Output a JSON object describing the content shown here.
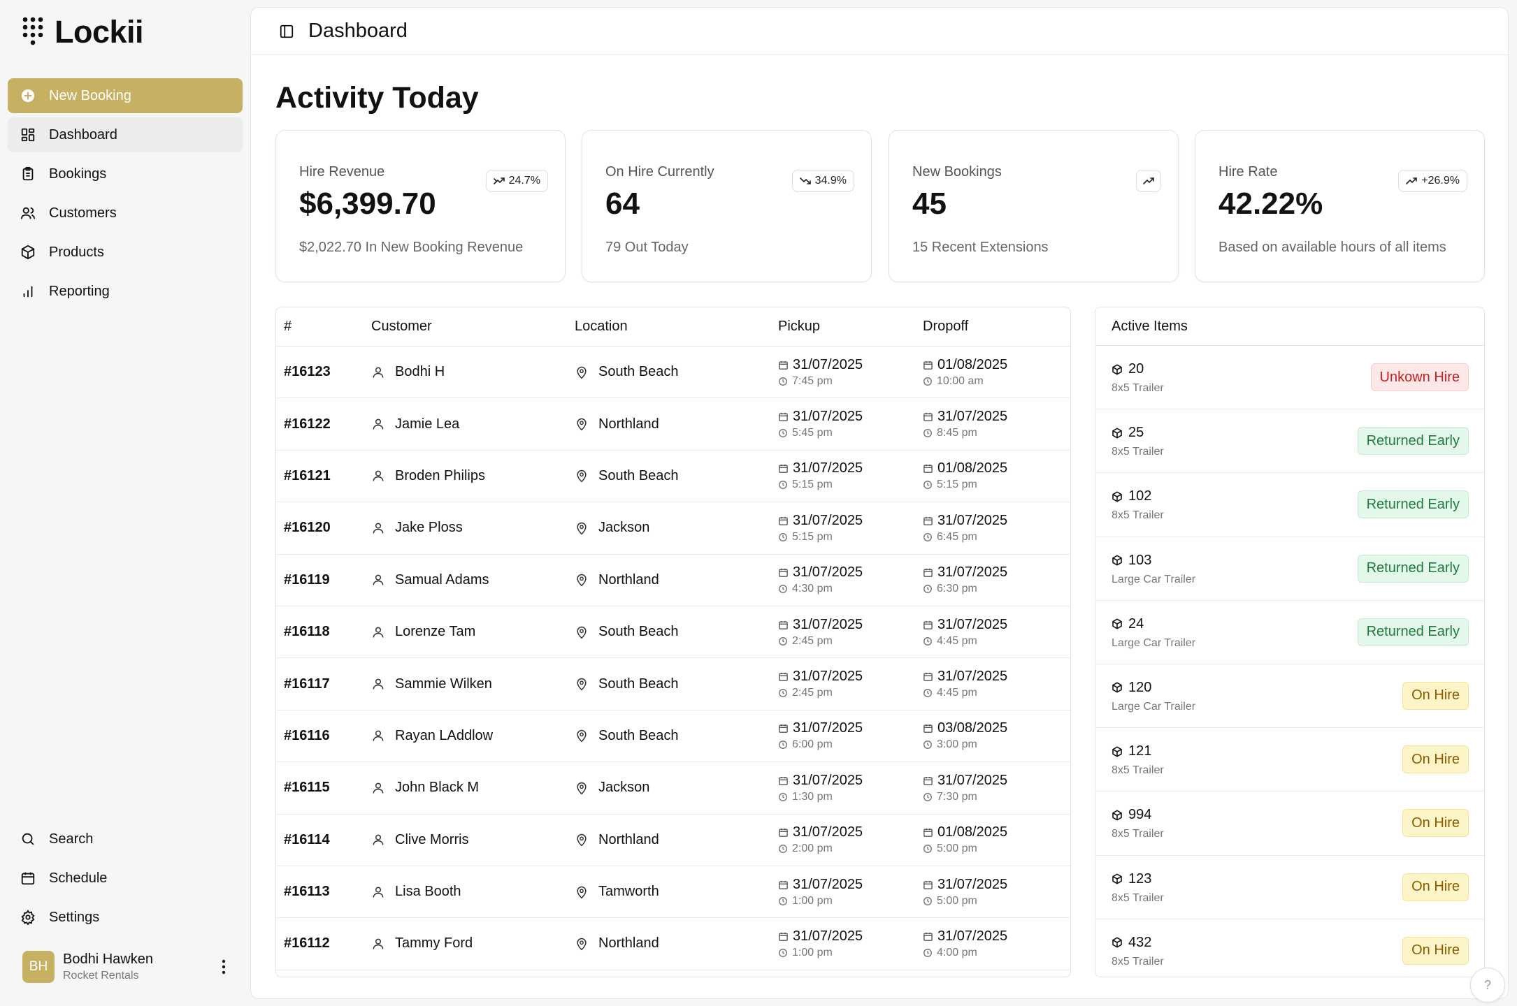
{
  "app": {
    "name": "Lockii"
  },
  "sidebar": {
    "nav": [
      {
        "label": "New Booking",
        "icon": "plus-circle-icon"
      },
      {
        "label": "Dashboard",
        "icon": "dashboard-icon"
      },
      {
        "label": "Bookings",
        "icon": "clipboard-icon"
      },
      {
        "label": "Customers",
        "icon": "users-icon"
      },
      {
        "label": "Products",
        "icon": "box-icon"
      },
      {
        "label": "Reporting",
        "icon": "bar-chart-icon"
      }
    ],
    "bottom": [
      {
        "label": "Search",
        "icon": "search-icon"
      },
      {
        "label": "Schedule",
        "icon": "calendar-icon"
      },
      {
        "label": "Settings",
        "icon": "gear-icon"
      }
    ],
    "user": {
      "initials": "BH",
      "name": "Bodhi Hawken",
      "org": "Rocket Rentals"
    }
  },
  "header": {
    "title": "Dashboard"
  },
  "page": {
    "title": "Activity Today"
  },
  "stats": [
    {
      "label": "Hire Revenue",
      "value": "$6,399.70",
      "sub": "$2,022.70 In New Booking Revenue",
      "badge": "24.7%",
      "trend": "mixed"
    },
    {
      "label": "On Hire Currently",
      "value": "64",
      "sub": "79 Out Today",
      "badge": "34.9%",
      "trend": "down"
    },
    {
      "label": "New Bookings",
      "value": "45",
      "sub": "15 Recent Extensions",
      "badge": "",
      "trend": "up"
    },
    {
      "label": "Hire Rate",
      "value": "42.22%",
      "sub": "Based on available hours of all items",
      "badge": "+26.9%",
      "trend": "up"
    }
  ],
  "bookings": {
    "columns": [
      "#",
      "Customer",
      "Location",
      "Pickup",
      "Dropoff"
    ],
    "rows": [
      {
        "id": "#16123",
        "customer": "Bodhi H",
        "location": "South Beach",
        "pickup_date": "31/07/2025",
        "pickup_time": "7:45 pm",
        "dropoff_date": "01/08/2025",
        "dropoff_time": "10:00 am"
      },
      {
        "id": "#16122",
        "customer": "Jamie Lea",
        "location": "Northland",
        "pickup_date": "31/07/2025",
        "pickup_time": "5:45 pm",
        "dropoff_date": "31/07/2025",
        "dropoff_time": "8:45 pm"
      },
      {
        "id": "#16121",
        "customer": "Broden Philips",
        "location": "South Beach",
        "pickup_date": "31/07/2025",
        "pickup_time": "5:15 pm",
        "dropoff_date": "01/08/2025",
        "dropoff_time": "5:15 pm"
      },
      {
        "id": "#16120",
        "customer": "Jake Ploss",
        "location": "Jackson",
        "pickup_date": "31/07/2025",
        "pickup_time": "5:15 pm",
        "dropoff_date": "31/07/2025",
        "dropoff_time": "6:45 pm"
      },
      {
        "id": "#16119",
        "customer": "Samual Adams",
        "location": "Northland",
        "pickup_date": "31/07/2025",
        "pickup_time": "4:30 pm",
        "dropoff_date": "31/07/2025",
        "dropoff_time": "6:30 pm"
      },
      {
        "id": "#16118",
        "customer": "Lorenze Tam",
        "location": "South Beach",
        "pickup_date": "31/07/2025",
        "pickup_time": "2:45 pm",
        "dropoff_date": "31/07/2025",
        "dropoff_time": "4:45 pm"
      },
      {
        "id": "#16117",
        "customer": "Sammie Wilken",
        "location": "South Beach",
        "pickup_date": "31/07/2025",
        "pickup_time": "2:45 pm",
        "dropoff_date": "31/07/2025",
        "dropoff_time": "4:45 pm"
      },
      {
        "id": "#16116",
        "customer": "Rayan LAddlow",
        "location": "South Beach",
        "pickup_date": "31/07/2025",
        "pickup_time": "6:00 pm",
        "dropoff_date": "03/08/2025",
        "dropoff_time": "3:00 pm"
      },
      {
        "id": "#16115",
        "customer": "John Black M",
        "location": "Jackson",
        "pickup_date": "31/07/2025",
        "pickup_time": "1:30 pm",
        "dropoff_date": "31/07/2025",
        "dropoff_time": "7:30 pm"
      },
      {
        "id": "#16114",
        "customer": "Clive Morris",
        "location": "Northland",
        "pickup_date": "31/07/2025",
        "pickup_time": "2:00 pm",
        "dropoff_date": "01/08/2025",
        "dropoff_time": "5:00 pm"
      },
      {
        "id": "#16113",
        "customer": "Lisa Booth",
        "location": "Tamworth",
        "pickup_date": "31/07/2025",
        "pickup_time": "1:00 pm",
        "dropoff_date": "31/07/2025",
        "dropoff_time": "5:00 pm"
      },
      {
        "id": "#16112",
        "customer": "Tammy Ford",
        "location": "Northland",
        "pickup_date": "31/07/2025",
        "pickup_time": "1:00 pm",
        "dropoff_date": "31/07/2025",
        "dropoff_time": "4:00 pm"
      }
    ]
  },
  "active_items": {
    "title": "Active Items",
    "items": [
      {
        "number": "20",
        "type": "8x5 Trailer",
        "status": "Unkown Hire",
        "status_kind": "unknown"
      },
      {
        "number": "25",
        "type": "8x5 Trailer",
        "status": "Returned Early",
        "status_kind": "early"
      },
      {
        "number": "102",
        "type": "8x5 Trailer",
        "status": "Returned Early",
        "status_kind": "early"
      },
      {
        "number": "103",
        "type": "Large Car Trailer",
        "status": "Returned Early",
        "status_kind": "early"
      },
      {
        "number": "24",
        "type": "Large Car Trailer",
        "status": "Returned Early",
        "status_kind": "early"
      },
      {
        "number": "120",
        "type": "Large Car Trailer",
        "status": "On Hire",
        "status_kind": "onhire"
      },
      {
        "number": "121",
        "type": "8x5 Trailer",
        "status": "On Hire",
        "status_kind": "onhire"
      },
      {
        "number": "994",
        "type": "8x5 Trailer",
        "status": "On Hire",
        "status_kind": "onhire"
      },
      {
        "number": "123",
        "type": "8x5 Trailer",
        "status": "On Hire",
        "status_kind": "onhire"
      },
      {
        "number": "432",
        "type": "8x5 Trailer",
        "status": "On Hire",
        "status_kind": "onhire"
      }
    ]
  },
  "help": {
    "label": "?"
  },
  "colors": {
    "accent": "#c6b062",
    "unknown": "#c21f1f",
    "early": "#1f7a3d",
    "onhire": "#8a5a00"
  }
}
